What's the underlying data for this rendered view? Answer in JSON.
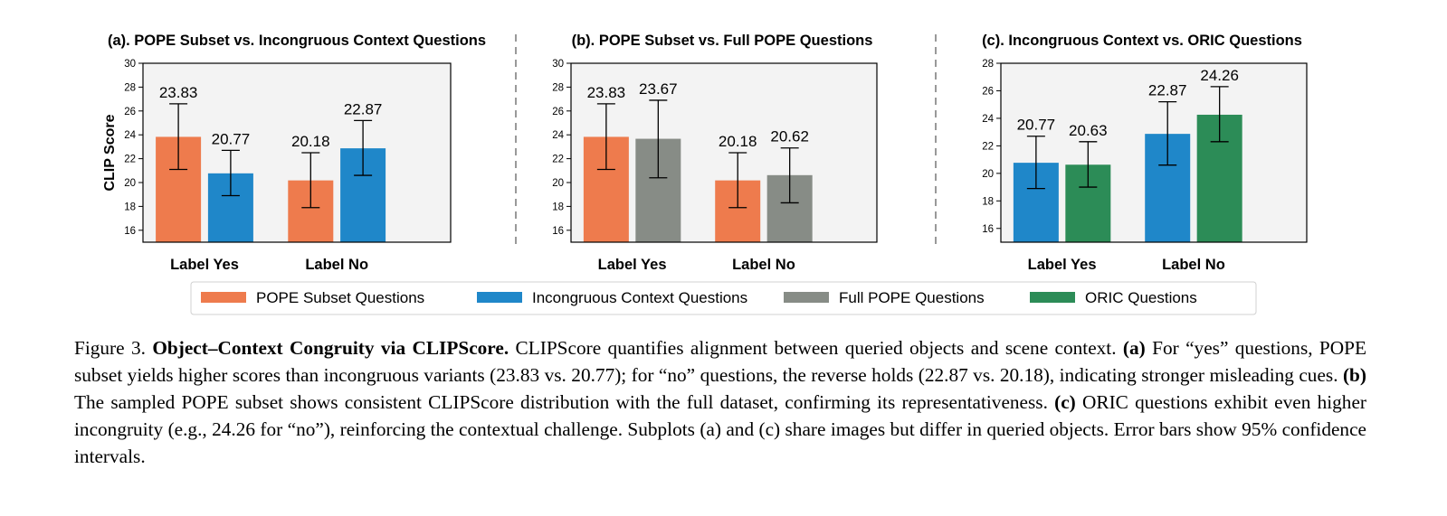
{
  "ylabel": "CLIP Score",
  "legend": [
    {
      "label": "POPE Subset Questions",
      "color": "#ee7b4d"
    },
    {
      "label": "Incongruous Context Questions",
      "color": "#1f87c9"
    },
    {
      "label": "Full POPE Questions",
      "color": "#878c86"
    },
    {
      "label": "ORIC Questions",
      "color": "#2c8c57"
    }
  ],
  "chart_data": [
    {
      "type": "bar",
      "title": "(a). POPE Subset vs. Incongruous Context Questions",
      "categories": [
        "Label Yes",
        "Label No"
      ],
      "series": [
        {
          "name": "POPE Subset Questions",
          "color": "#ee7b4d",
          "values": [
            23.83,
            20.18
          ],
          "err_low": [
            21.1,
            17.9
          ],
          "err_high": [
            26.6,
            22.5
          ]
        },
        {
          "name": "Incongruous Context Questions",
          "color": "#1f87c9",
          "values": [
            20.77,
            22.87
          ],
          "err_low": [
            18.9,
            20.6
          ],
          "err_high": [
            22.7,
            25.2
          ]
        }
      ],
      "value_labels": [
        "23.83",
        "20.77",
        "20.18",
        "22.87"
      ],
      "ylabel": "CLIP Score",
      "ylim": [
        15,
        30
      ],
      "yticks": [
        "16",
        "18",
        "20",
        "22",
        "24",
        "26",
        "28",
        "30"
      ]
    },
    {
      "type": "bar",
      "title": "(b). POPE Subset vs. Full POPE Questions",
      "categories": [
        "Label Yes",
        "Label No"
      ],
      "series": [
        {
          "name": "POPE Subset Questions",
          "color": "#ee7b4d",
          "values": [
            23.83,
            20.18
          ],
          "err_low": [
            21.1,
            17.9
          ],
          "err_high": [
            26.6,
            22.5
          ]
        },
        {
          "name": "Full POPE Questions",
          "color": "#878c86",
          "values": [
            23.67,
            20.62
          ],
          "err_low": [
            20.4,
            18.3
          ],
          "err_high": [
            26.9,
            22.9
          ]
        }
      ],
      "value_labels": [
        "23.83",
        "23.67",
        "20.18",
        "20.62"
      ],
      "ylim": [
        15,
        30
      ],
      "yticks": [
        "16",
        "18",
        "20",
        "22",
        "24",
        "26",
        "28",
        "30"
      ]
    },
    {
      "type": "bar",
      "title": "(c). Incongruous Context vs. ORIC Questions",
      "categories": [
        "Label Yes",
        "Label No"
      ],
      "series": [
        {
          "name": "Incongruous Context Questions",
          "color": "#1f87c9",
          "values": [
            20.77,
            22.87
          ],
          "err_low": [
            18.9,
            20.6
          ],
          "err_high": [
            22.7,
            25.2
          ]
        },
        {
          "name": "ORIC Questions",
          "color": "#2c8c57",
          "values": [
            20.63,
            24.26
          ],
          "err_low": [
            19.0,
            22.3
          ],
          "err_high": [
            22.3,
            26.3
          ]
        }
      ],
      "value_labels": [
        "20.77",
        "20.63",
        "22.87",
        "24.26"
      ],
      "ylim": [
        15,
        28
      ],
      "yticks": [
        "16",
        "18",
        "20",
        "22",
        "24",
        "26",
        "28"
      ]
    }
  ],
  "caption": {
    "figure_label": "Figure 3.",
    "title": "Object–Context Congruity via CLIPScore.",
    "t1": " CLIPScore quantifies alignment between queried objects and scene context. ",
    "a": "(a)",
    "t2": " For “yes” questions, POPE subset yields higher scores than incongruous variants (23.83 vs. 20.77); for “no” questions, the reverse holds (22.87 vs. 20.18), indicating stronger misleading cues. ",
    "b": "(b)",
    "t3": " The sampled POPE subset shows consistent CLIPScore distribution with the full dataset, confirming its representativeness. ",
    "c": "(c)",
    "t4": " ORIC questions exhibit even higher incongruity (e.g., 24.26 for “no”), reinforcing the contextual challenge. Subplots (a) and (c) share images but differ in queried objects. Error bars show 95% confidence intervals."
  }
}
